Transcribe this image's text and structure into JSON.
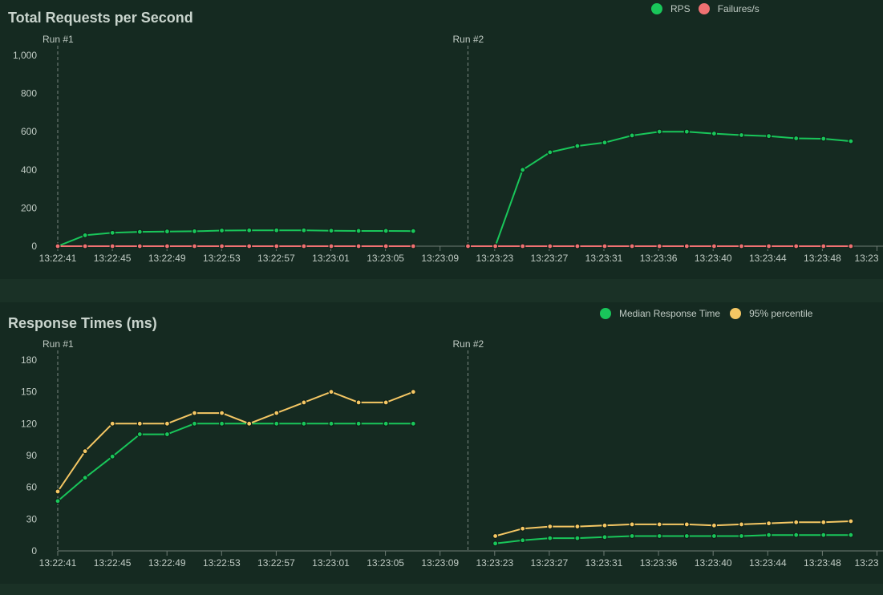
{
  "colors": {
    "rps": "#19c65a",
    "failures": "#f07172",
    "median": "#19c65a",
    "p95": "#f5c764",
    "axis": "#c0cbc4",
    "marker": "#8a9690"
  },
  "chart_data": [
    {
      "type": "line",
      "title": "Total Requests per Second",
      "x_ticks": [
        "13:22:41",
        "13:22:45",
        "13:22:49",
        "13:22:53",
        "13:22:57",
        "13:23:01",
        "13:23:05",
        "13:23:09",
        "13:23:23",
        "13:23:27",
        "13:23:31",
        "13:23:36",
        "13:23:40",
        "13:23:44",
        "13:23:48",
        "13:23"
      ],
      "y_ticks": [
        "0",
        "200",
        "400",
        "600",
        "800",
        "1,000"
      ],
      "ylim": [
        0,
        1000
      ],
      "markers": [
        {
          "label": "Run #1",
          "x_index": 0
        },
        {
          "label": "Run #2",
          "x_index": 15
        }
      ],
      "legend": [
        {
          "name": "RPS",
          "color": "#19c65a"
        },
        {
          "name": "Failures/s",
          "color": "#f07172"
        }
      ],
      "series": [
        {
          "name": "RPS",
          "color": "#19c65a",
          "segments": [
            {
              "start_index": 0,
              "values": [
                0,
                57,
                70,
                75,
                77,
                78,
                82,
                83,
                83,
                83,
                81,
                80,
                80,
                79
              ]
            },
            {
              "start_index": 16,
              "values": [
                0,
                400,
                492,
                525,
                543,
                580,
                600,
                600,
                590,
                582,
                577,
                565,
                563,
                550
              ]
            }
          ]
        },
        {
          "name": "Failures/s",
          "color": "#f07172",
          "segments": [
            {
              "start_index": 0,
              "values": [
                0,
                0,
                0,
                0,
                0,
                0,
                0,
                0,
                0,
                0,
                0,
                0,
                0,
                0
              ]
            },
            {
              "start_index": 15,
              "values": [
                0,
                0,
                0,
                0,
                0,
                0,
                0,
                0,
                0,
                0,
                0,
                0,
                0,
                0,
                0
              ]
            }
          ]
        }
      ]
    },
    {
      "type": "line",
      "title": "Response Times (ms)",
      "x_ticks": [
        "13:22:41",
        "13:22:45",
        "13:22:49",
        "13:22:53",
        "13:22:57",
        "13:23:01",
        "13:23:05",
        "13:23:09",
        "13:23:23",
        "13:23:27",
        "13:23:31",
        "13:23:36",
        "13:23:40",
        "13:23:44",
        "13:23:48",
        "13:23"
      ],
      "y_ticks": [
        "0",
        "30",
        "60",
        "90",
        "120",
        "150",
        "180"
      ],
      "ylim": [
        0,
        180
      ],
      "markers": [
        {
          "label": "Run #1",
          "x_index": 0
        },
        {
          "label": "Run #2",
          "x_index": 15
        }
      ],
      "legend": [
        {
          "name": "Median Response Time",
          "color": "#19c65a"
        },
        {
          "name": "95% percentile",
          "color": "#f5c764"
        }
      ],
      "series": [
        {
          "name": "Median Response Time",
          "color": "#19c65a",
          "segments": [
            {
              "start_index": 0,
              "values": [
                47,
                69,
                89,
                110,
                110,
                120,
                120,
                120,
                120,
                120,
                120,
                120,
                120,
                120
              ]
            },
            {
              "start_index": 16,
              "values": [
                7,
                10,
                12,
                12,
                13,
                14,
                14,
                14,
                14,
                14,
                15,
                15,
                15,
                15
              ]
            }
          ]
        },
        {
          "name": "95% percentile",
          "color": "#f5c764",
          "segments": [
            {
              "start_index": 0,
              "values": [
                56,
                94,
                120,
                120,
                120,
                130,
                130,
                120,
                130,
                140,
                150,
                140,
                140,
                150
              ]
            },
            {
              "start_index": 16,
              "values": [
                14,
                21,
                23,
                23,
                24,
                25,
                25,
                25,
                24,
                25,
                26,
                27,
                27,
                28
              ]
            }
          ]
        }
      ]
    }
  ]
}
